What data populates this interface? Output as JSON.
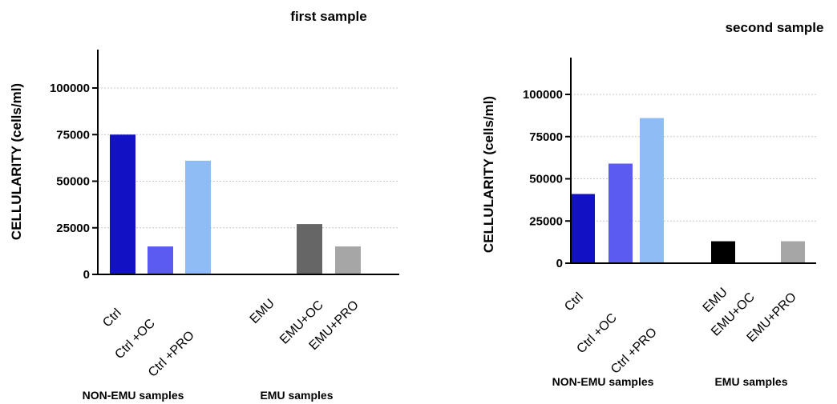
{
  "chart_data": [
    {
      "type": "bar",
      "title": "first sample",
      "ylabel": "CELLULARITY (cells/ml)",
      "xlabel": "",
      "ylim": [
        0,
        120000
      ],
      "yticks": [
        "0",
        "25000",
        "50000",
        "75000",
        "100000"
      ],
      "grid": true,
      "categories": [
        "Ctrl",
        "Ctrl +OC",
        "Ctrl +PRO",
        "EMU",
        "EMU+OC",
        "EMU+PRO"
      ],
      "values": [
        75000,
        15000,
        61000,
        0,
        27000,
        15000
      ],
      "colors": [
        "#1212c4",
        "#5b5bf2",
        "#8fbcf5",
        "#000000",
        "#666666",
        "#a6a6a6"
      ],
      "groups": [
        "NON-EMU samples",
        "EMU samples"
      ]
    },
    {
      "type": "bar",
      "title": "second sample",
      "ylabel": "CELLULARITY (cells/ml)",
      "xlabel": "",
      "ylim": [
        0,
        120000
      ],
      "yticks": [
        "0",
        "25000",
        "50000",
        "75000",
        "100000"
      ],
      "grid": true,
      "categories": [
        "Ctrl",
        "Ctrl +OC",
        "Ctrl +PRO",
        "EMU",
        "EMU+OC",
        "EMU+PRO"
      ],
      "values": [
        41000,
        59000,
        86000,
        13000,
        0,
        13000
      ],
      "colors": [
        "#1212c4",
        "#5b5bf2",
        "#8fbcf5",
        "#000000",
        "#666666",
        "#a6a6a6"
      ],
      "groups": [
        "NON-EMU samples",
        "EMU samples"
      ]
    }
  ]
}
